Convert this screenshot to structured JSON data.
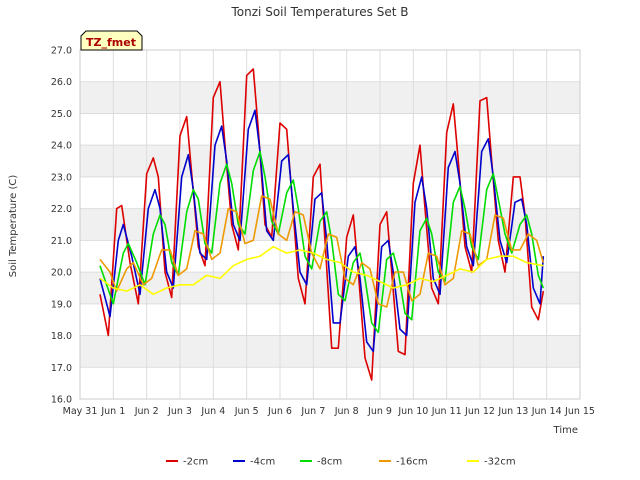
{
  "chart_data": {
    "type": "line",
    "title": "Tonzi Soil Temperatures Set B",
    "xlabel": "Time",
    "ylabel": "Soil Temperature (C)",
    "badge": "TZ_fmet",
    "xlim": [
      0,
      15
    ],
    "ylim": [
      16.0,
      27.0
    ],
    "x_ticks": [
      {
        "pos": 0,
        "label": "May 31"
      },
      {
        "pos": 1,
        "label": "Jun 1"
      },
      {
        "pos": 2,
        "label": "Jun 2"
      },
      {
        "pos": 3,
        "label": "Jun 3"
      },
      {
        "pos": 4,
        "label": "Jun 4"
      },
      {
        "pos": 5,
        "label": "Jun 5"
      },
      {
        "pos": 6,
        "label": "Jun 6"
      },
      {
        "pos": 7,
        "label": "Jun 7"
      },
      {
        "pos": 8,
        "label": "Jun 8"
      },
      {
        "pos": 9,
        "label": "Jun 9"
      },
      {
        "pos": 10,
        "label": "Jun 10"
      },
      {
        "pos": 11,
        "label": "Jun 11"
      },
      {
        "pos": 12,
        "label": "Jun 12"
      },
      {
        "pos": 13,
        "label": "Jun 13"
      },
      {
        "pos": 14,
        "label": "Jun 14"
      },
      {
        "pos": 15,
        "label": "Jun 15"
      }
    ],
    "y_ticks": [
      {
        "value": 16.0,
        "label": "16.0"
      },
      {
        "value": 17.0,
        "label": "17.0"
      },
      {
        "value": 18.0,
        "label": "18.0"
      },
      {
        "value": 19.0,
        "label": "19.0"
      },
      {
        "value": 20.0,
        "label": "20.0"
      },
      {
        "value": 21.0,
        "label": "21.0"
      },
      {
        "value": 22.0,
        "label": "22.0"
      },
      {
        "value": 23.0,
        "label": "23.0"
      },
      {
        "value": 24.0,
        "label": "24.0"
      },
      {
        "value": 25.0,
        "label": "25.0"
      },
      {
        "value": 26.0,
        "label": "26.0"
      },
      {
        "value": 27.0,
        "label": "27.0"
      }
    ],
    "grid": true,
    "legend_position": "bottom",
    "series": [
      {
        "name": "-2cm",
        "color": "#dd0000",
        "x": [
          0.6,
          0.85,
          1.1,
          1.25,
          1.5,
          1.75,
          2.0,
          2.2,
          2.35,
          2.55,
          2.75,
          3.0,
          3.2,
          3.35,
          3.55,
          3.75,
          4.0,
          4.2,
          4.35,
          4.55,
          4.75,
          5.0,
          5.2,
          5.35,
          5.55,
          5.75,
          6.0,
          6.2,
          6.35,
          6.55,
          6.75,
          7.0,
          7.2,
          7.35,
          7.55,
          7.75,
          8.0,
          8.2,
          8.35,
          8.55,
          8.75,
          9.0,
          9.2,
          9.35,
          9.55,
          9.75,
          10.0,
          10.2,
          10.35,
          10.55,
          10.75,
          11.0,
          11.2,
          11.35,
          11.55,
          11.75,
          12.0,
          12.2,
          12.35,
          12.55,
          12.75,
          13.0,
          13.2,
          13.35,
          13.55,
          13.75,
          13.9
        ],
        "y": [
          19.3,
          18.0,
          22.0,
          22.1,
          20.3,
          19.0,
          23.1,
          23.6,
          23.0,
          20.0,
          19.2,
          24.3,
          24.9,
          23.1,
          20.8,
          20.2,
          25.5,
          26.0,
          24.0,
          21.5,
          20.7,
          26.2,
          26.4,
          24.5,
          21.5,
          21.1,
          24.7,
          24.5,
          22.5,
          19.8,
          19.0,
          23.0,
          23.4,
          21.0,
          17.6,
          17.6,
          21.1,
          21.8,
          20.0,
          17.3,
          16.6,
          21.5,
          21.9,
          20.0,
          17.5,
          17.4,
          22.8,
          24.0,
          22.0,
          19.5,
          19.0,
          24.4,
          25.3,
          23.5,
          20.8,
          20.0,
          25.4,
          25.5,
          23.5,
          21.0,
          20.0,
          23.0,
          23.0,
          21.8,
          18.9,
          18.5,
          19.4
        ]
      },
      {
        "name": "-4cm",
        "color": "#0000cc",
        "x": [
          0.6,
          0.9,
          1.15,
          1.3,
          1.55,
          1.8,
          2.05,
          2.25,
          2.4,
          2.6,
          2.8,
          3.05,
          3.25,
          3.4,
          3.6,
          3.8,
          4.05,
          4.25,
          4.4,
          4.6,
          4.8,
          5.05,
          5.25,
          5.4,
          5.6,
          5.8,
          6.05,
          6.25,
          6.4,
          6.6,
          6.8,
          7.05,
          7.25,
          7.4,
          7.6,
          7.8,
          8.05,
          8.25,
          8.4,
          8.6,
          8.8,
          9.05,
          9.25,
          9.4,
          9.6,
          9.8,
          10.05,
          10.25,
          10.4,
          10.6,
          10.8,
          11.05,
          11.25,
          11.4,
          11.6,
          11.8,
          12.05,
          12.25,
          12.4,
          12.6,
          12.8,
          13.05,
          13.25,
          13.4,
          13.6,
          13.8,
          13.9
        ],
        "y": [
          19.8,
          18.6,
          21.0,
          21.5,
          20.5,
          19.3,
          22.0,
          22.6,
          22.0,
          20.0,
          19.5,
          23.0,
          23.7,
          22.6,
          20.6,
          20.4,
          24.0,
          24.6,
          23.5,
          21.5,
          21.0,
          24.5,
          25.1,
          23.8,
          21.3,
          21.0,
          23.5,
          23.7,
          22.0,
          20.0,
          19.6,
          22.3,
          22.5,
          21.0,
          18.4,
          18.4,
          20.5,
          20.8,
          19.8,
          17.8,
          17.5,
          20.8,
          21.0,
          20.0,
          18.2,
          18.0,
          22.2,
          23.0,
          22.0,
          19.8,
          19.3,
          23.3,
          23.8,
          22.8,
          20.8,
          20.2,
          23.8,
          24.2,
          23.0,
          21.0,
          20.3,
          22.2,
          22.3,
          21.5,
          19.5,
          19.0,
          20.5
        ]
      },
      {
        "name": "-8cm",
        "color": "#00dd00",
        "x": [
          0.6,
          1.0,
          1.3,
          1.45,
          1.7,
          1.95,
          2.2,
          2.4,
          2.55,
          2.75,
          2.95,
          3.2,
          3.4,
          3.55,
          3.75,
          3.95,
          4.2,
          4.4,
          4.55,
          4.75,
          4.95,
          5.2,
          5.4,
          5.55,
          5.75,
          5.95,
          6.2,
          6.4,
          6.55,
          6.75,
          6.95,
          7.2,
          7.4,
          7.55,
          7.75,
          7.95,
          8.2,
          8.4,
          8.55,
          8.75,
          8.95,
          9.2,
          9.4,
          9.55,
          9.75,
          9.95,
          10.2,
          10.4,
          10.55,
          10.75,
          10.95,
          11.2,
          11.4,
          11.55,
          11.75,
          11.95,
          12.2,
          12.4,
          12.55,
          12.75,
          12.95,
          13.2,
          13.4,
          13.55,
          13.75,
          13.9
        ],
        "y": [
          20.2,
          19.0,
          20.6,
          20.9,
          20.3,
          19.6,
          21.2,
          21.8,
          21.5,
          20.3,
          19.9,
          21.9,
          22.6,
          22.3,
          20.9,
          20.6,
          22.8,
          23.4,
          22.8,
          21.5,
          21.2,
          23.2,
          23.8,
          23.0,
          21.6,
          21.2,
          22.5,
          22.9,
          22.0,
          20.5,
          20.1,
          21.6,
          21.9,
          21.0,
          19.3,
          19.1,
          20.3,
          20.6,
          19.8,
          18.4,
          18.1,
          20.4,
          20.6,
          20.0,
          18.7,
          18.5,
          21.3,
          21.7,
          21.2,
          20.0,
          19.7,
          22.2,
          22.7,
          22.0,
          20.8,
          20.4,
          22.6,
          23.1,
          22.3,
          21.2,
          20.6,
          21.5,
          21.8,
          21.2,
          19.9,
          19.5
        ]
      },
      {
        "name": "-16cm",
        "color": "#ee9900",
        "x": [
          0.6,
          0.9,
          1.1,
          1.4,
          1.6,
          1.9,
          2.15,
          2.45,
          2.7,
          2.95,
          3.2,
          3.45,
          3.7,
          3.95,
          4.2,
          4.45,
          4.7,
          4.95,
          5.2,
          5.45,
          5.7,
          5.95,
          6.2,
          6.45,
          6.7,
          6.95,
          7.2,
          7.45,
          7.7,
          7.95,
          8.2,
          8.45,
          8.7,
          8.95,
          9.2,
          9.45,
          9.7,
          9.95,
          10.2,
          10.45,
          10.7,
          10.95,
          11.2,
          11.45,
          11.7,
          11.95,
          12.2,
          12.45,
          12.7,
          12.95,
          13.2,
          13.45,
          13.7,
          13.9
        ],
        "y": [
          20.4,
          20.0,
          19.4,
          20.1,
          20.3,
          19.6,
          19.8,
          20.7,
          20.7,
          19.9,
          20.1,
          21.3,
          21.2,
          20.4,
          20.6,
          22.0,
          21.9,
          20.9,
          21.0,
          22.4,
          22.3,
          21.2,
          21.0,
          21.9,
          21.8,
          20.6,
          20.1,
          21.2,
          21.1,
          19.8,
          19.6,
          20.3,
          20.1,
          19.0,
          18.9,
          20.0,
          20.0,
          19.1,
          19.3,
          20.6,
          20.5,
          19.6,
          19.8,
          21.3,
          21.2,
          20.2,
          20.4,
          21.8,
          21.7,
          20.7,
          20.7,
          21.2,
          21.0,
          20.3
        ]
      },
      {
        "name": "-32cm",
        "color": "#ffff00",
        "x": [
          0.6,
          1.0,
          1.4,
          1.8,
          2.2,
          2.6,
          3.0,
          3.4,
          3.8,
          4.2,
          4.6,
          5.0,
          5.4,
          5.8,
          6.2,
          6.6,
          7.0,
          7.4,
          7.8,
          8.2,
          8.6,
          9.0,
          9.4,
          9.8,
          10.2,
          10.6,
          11.0,
          11.4,
          11.8,
          12.2,
          12.6,
          13.0,
          13.4,
          13.9
        ],
        "y": [
          19.8,
          19.5,
          19.4,
          19.6,
          19.3,
          19.5,
          19.6,
          19.6,
          19.9,
          19.8,
          20.2,
          20.4,
          20.5,
          20.8,
          20.6,
          20.7,
          20.6,
          20.4,
          20.3,
          20.0,
          19.9,
          19.7,
          19.5,
          19.6,
          19.8,
          19.7,
          19.9,
          20.1,
          20.0,
          20.4,
          20.5,
          20.5,
          20.3,
          20.2
        ]
      }
    ]
  }
}
